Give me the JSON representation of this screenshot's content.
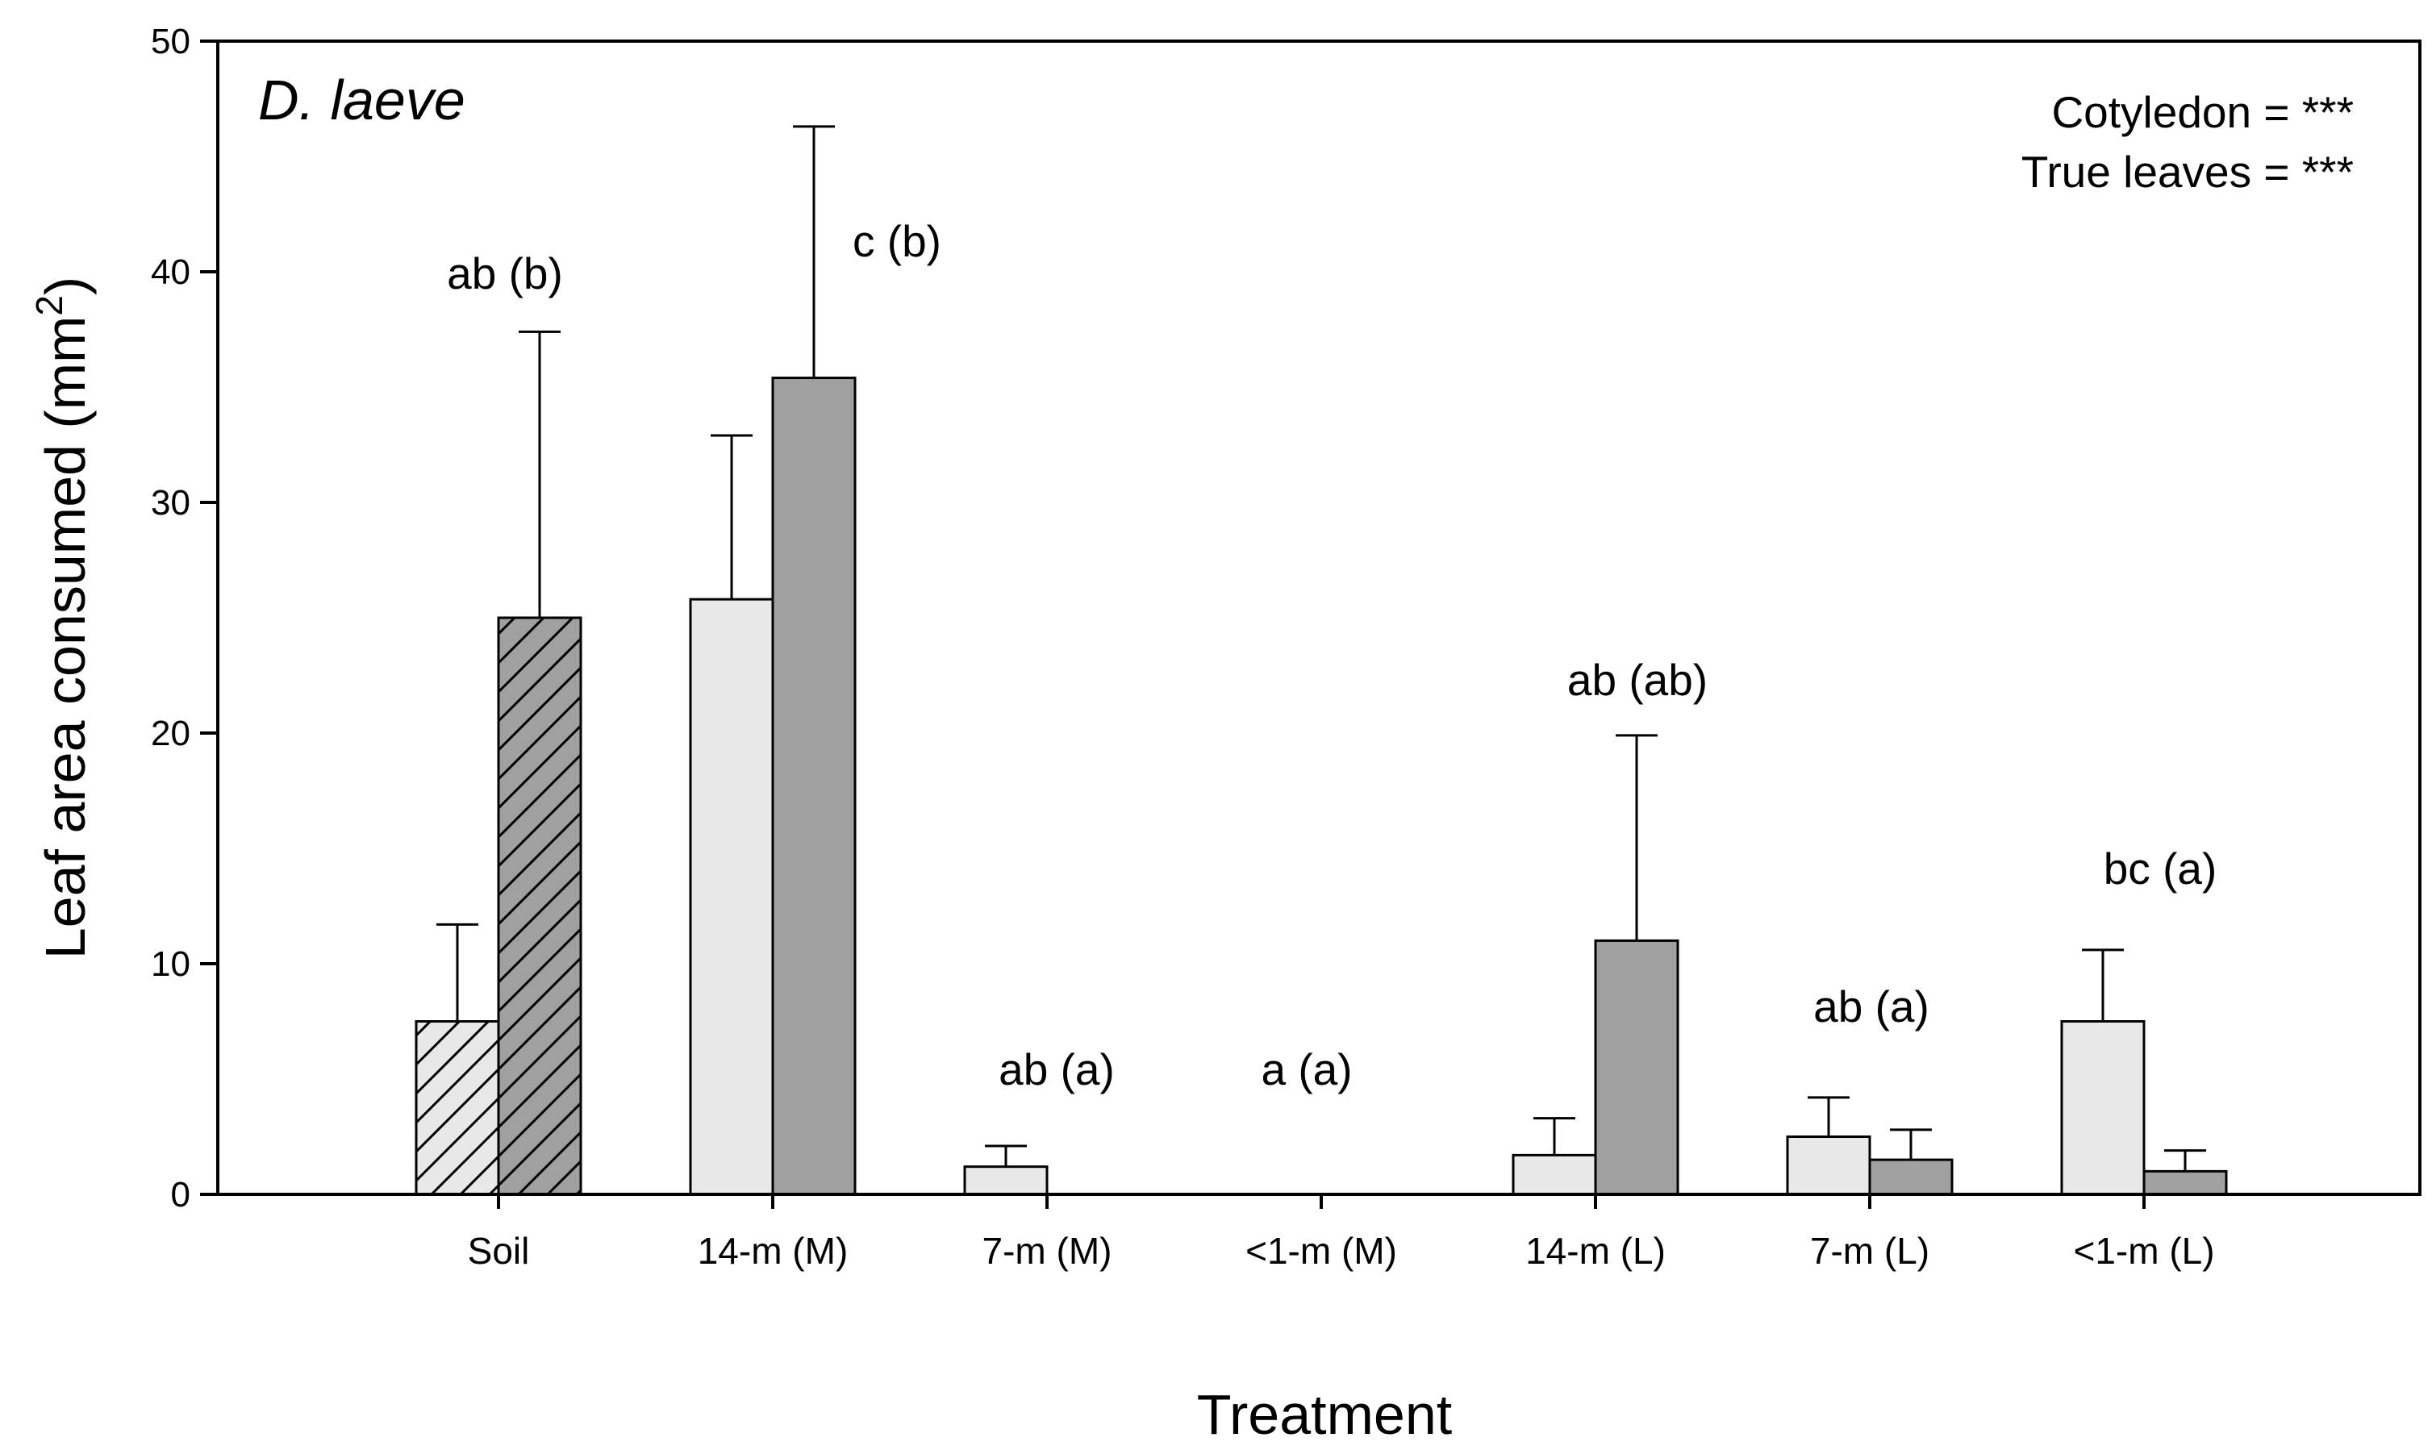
{
  "chart_data": {
    "type": "bar",
    "species_label": "D. laeve",
    "xlabel": "Treatment",
    "ylabel": "Leaf area consumed (mm",
    "ylabel_superscript": "2",
    "ylabel_close": ")",
    "ylim": [
      0,
      50
    ],
    "yticks": [
      "0",
      "10",
      "20",
      "30",
      "40",
      "50"
    ],
    "categories": [
      "Soil",
      "14-m (M)",
      "7-m (M)",
      "<1-m (M)",
      "14-m (L)",
      "7-m (L)",
      "<1-m (L)"
    ],
    "series": [
      {
        "name": "Cotyledon",
        "color": "#e8e8e8",
        "values": [
          7.5,
          25.8,
          1.2,
          0,
          1.7,
          2.5,
          7.5
        ],
        "error": [
          4.2,
          7.1,
          0.9,
          0,
          1.6,
          1.7,
          3.1
        ]
      },
      {
        "name": "True leaves",
        "color": "#a0a0a0",
        "values": [
          25.0,
          35.4,
          0,
          0,
          11.0,
          1.5,
          1.0
        ],
        "error": [
          12.4,
          10.9,
          0,
          0,
          8.9,
          1.3,
          0.9
        ]
      }
    ],
    "hatched_categories": [
      "Soil"
    ],
    "significance_labels": [
      "ab (b)",
      "c (b)",
      "ab (a)",
      "a (a)",
      "ab (ab)",
      "ab (a)",
      "bc (a)"
    ],
    "stats": [
      "Cotyledon = ***",
      "True leaves = ***"
    ]
  }
}
